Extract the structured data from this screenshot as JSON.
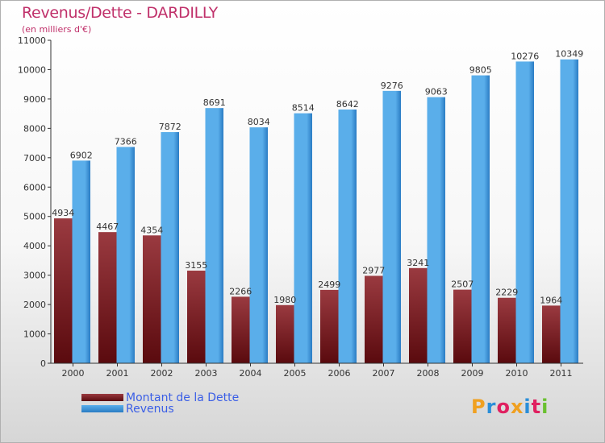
{
  "title": "Revenus/Dette - DARDILLY",
  "subtitle": "(en milliers d'€)",
  "colors": {
    "dette_dark": "#5a0a0e",
    "dette_light": "#9a3a40",
    "revenus_dark": "#2a7cc4",
    "revenus_light": "#5aaeea",
    "title": "#c0306a",
    "legend_text": "#3a5ee6"
  },
  "legend": {
    "dette_label": "Montant de la Dette",
    "revenus_label": "Revenus"
  },
  "logo": {
    "text": "Proxiti"
  },
  "chart_data": {
    "type": "bar",
    "categories": [
      "2000",
      "2001",
      "2002",
      "2003",
      "2004",
      "2005",
      "2006",
      "2007",
      "2008",
      "2009",
      "2010",
      "2011"
    ],
    "series": [
      {
        "name": "Montant de la Dette",
        "values": [
          4934,
          4467,
          4354,
          3155,
          2266,
          1980,
          2499,
          2977,
          3241,
          2507,
          2229,
          1964
        ]
      },
      {
        "name": "Revenus",
        "values": [
          6902,
          7366,
          7872,
          8691,
          8034,
          8514,
          8642,
          9276,
          9063,
          9805,
          10276,
          10349
        ]
      }
    ],
    "ylim": [
      0,
      11000
    ],
    "yticks": [
      0,
      1000,
      2000,
      3000,
      4000,
      5000,
      6000,
      7000,
      8000,
      9000,
      10000,
      11000
    ],
    "grid": false,
    "legend_position": "bottom-left"
  }
}
